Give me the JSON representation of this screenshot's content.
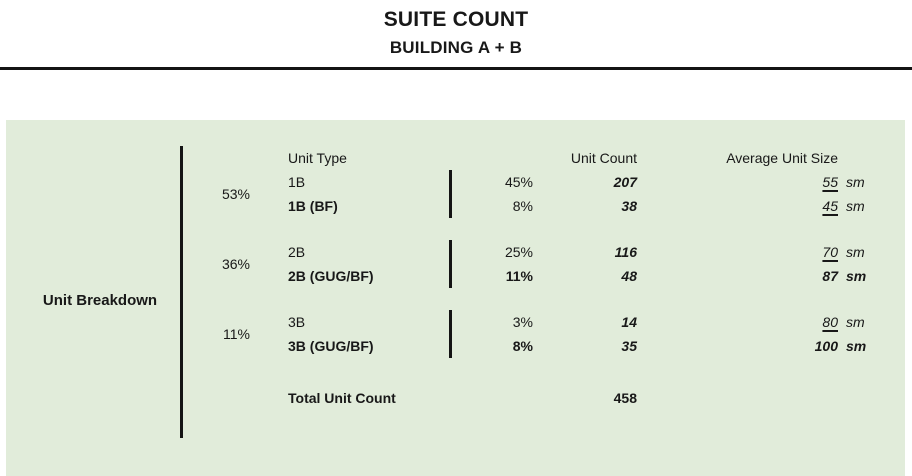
{
  "header": {
    "title": "SUITE COUNT",
    "subtitle": "BUILDING A + B"
  },
  "panel": {
    "section_label": "Unit Breakdown",
    "columns": {
      "unit_type": "Unit Type",
      "unit_count": "Unit Count",
      "avg_size": "Average Unit Size"
    },
    "groups": [
      {
        "pct": "53%"
      },
      {
        "pct": "36%"
      },
      {
        "pct": "11%"
      }
    ],
    "rows": [
      {
        "type": "1B",
        "pct": "45%",
        "count": "207",
        "size": "55",
        "size_unit": "sm"
      },
      {
        "type": "1B (BF)",
        "pct": "8%",
        "count": "38",
        "size": "45",
        "size_unit": "sm"
      },
      {
        "type": "2B",
        "pct": "25%",
        "count": "116",
        "size": "70",
        "size_unit": "sm"
      },
      {
        "type": "2B (GUG/BF)",
        "pct": "11%",
        "count": "48",
        "size": "87",
        "size_unit": "sm"
      },
      {
        "type": "3B",
        "pct": "3%",
        "count": "14",
        "size": "80",
        "size_unit": "sm"
      },
      {
        "type": "3B (GUG/BF)",
        "pct": "8%",
        "count": "35",
        "size": "100",
        "size_unit": "sm"
      }
    ],
    "total": {
      "label": "Total Unit Count",
      "count": "458"
    }
  },
  "colors": {
    "panel_bg": "#e1ecda",
    "line": "#141414",
    "text": "#181818"
  }
}
